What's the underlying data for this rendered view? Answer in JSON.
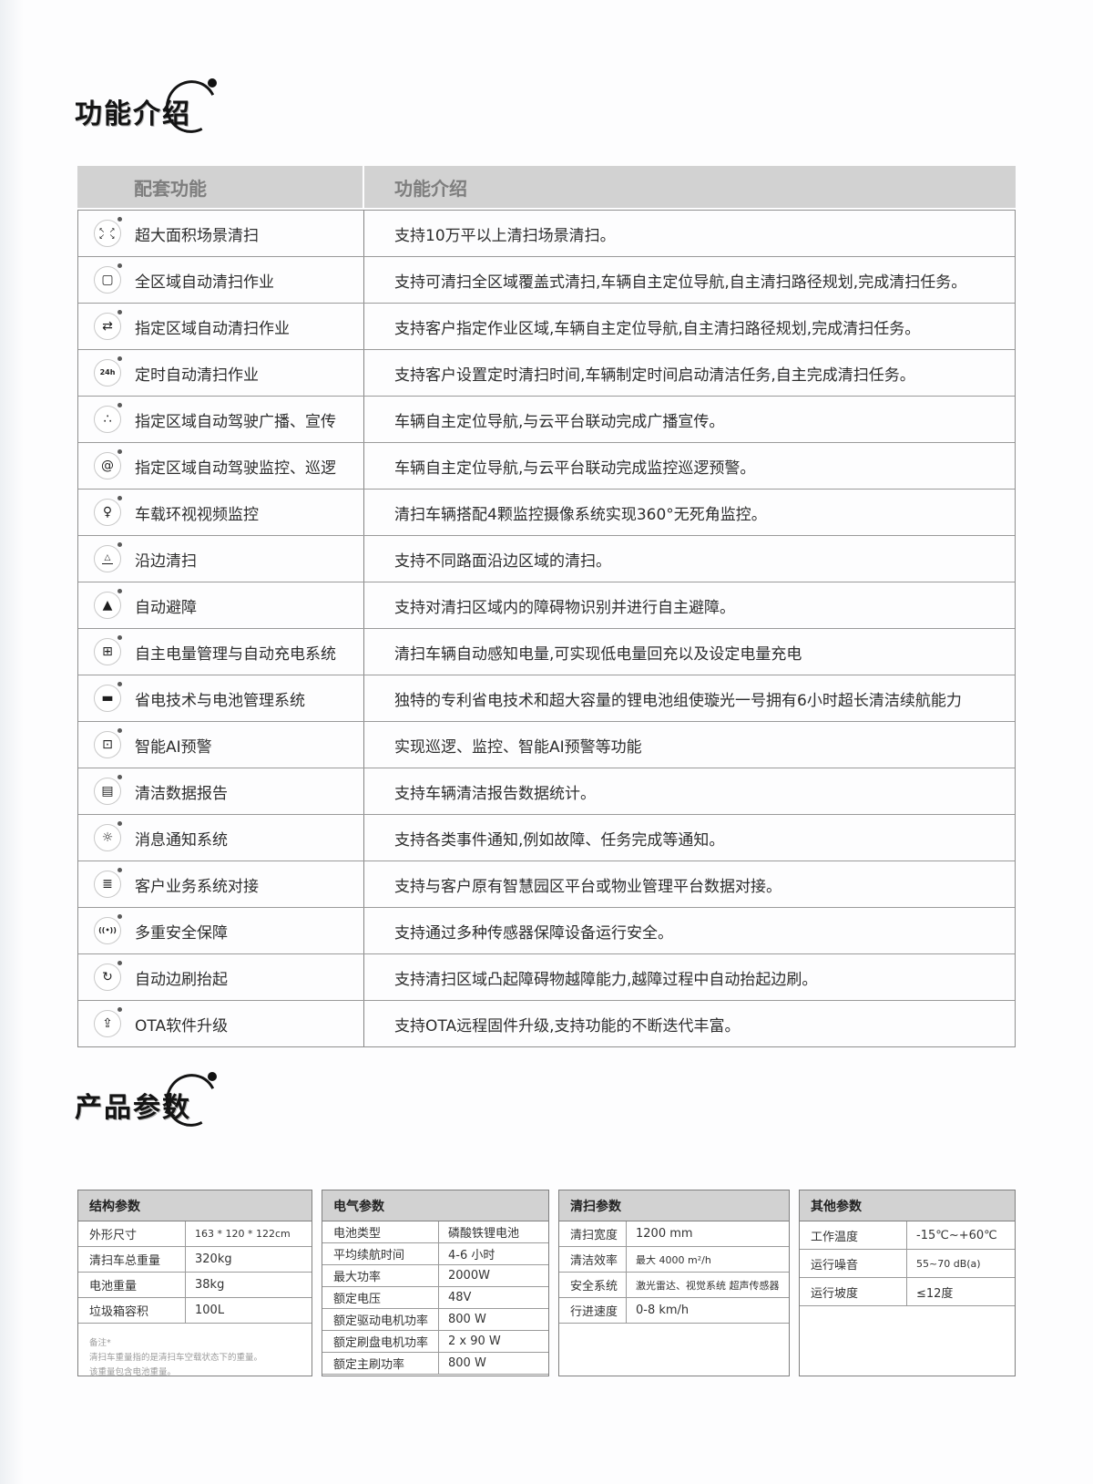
{
  "sections": {
    "features_title": "功能介绍",
    "params_title": "产品参数"
  },
  "colors": {
    "header_bg": "#d2d2d2",
    "header_text": "#7e7e7e",
    "table_border": "#8f8f8f",
    "body_text": "#2d2d2d",
    "note_text": "#9b9b9b"
  },
  "features_table": {
    "headers": [
      "配套功能",
      "功能介绍"
    ],
    "rows": [
      {
        "icon": "expand-area-icon",
        "glyph": "↖ ↗\n↙ ↘",
        "label": "超大面积场景清扫",
        "desc": "支持10万平以上清扫场景清扫。"
      },
      {
        "icon": "area-polygon-icon",
        "glyph": "▢",
        "label": "全区域自动清扫作业",
        "desc": "支持可清扫全区域覆盖式清扫,车辆自主定位导航,自主清扫路径规划,完成清扫任务。"
      },
      {
        "icon": "repeat-region-icon",
        "glyph": "⇄",
        "label": "指定区域自动清扫作业",
        "desc": "支持客户指定作业区域,车辆自主定位导航,自主清扫路径规划,完成清扫任务。"
      },
      {
        "icon": "24h-timer-icon",
        "glyph": "24h",
        "label": "定时自动清扫作业",
        "desc": "支持客户设置定时清扫时间,车辆制定时间启动清洁任务,自主完成清扫任务。"
      },
      {
        "icon": "broadcast-network-icon",
        "glyph": "∴",
        "label": "指定区域自动驾驶广播、宣传",
        "desc": "车辆自主定位导航,与云平台联动完成广播宣传。"
      },
      {
        "icon": "patrol-spiral-icon",
        "glyph": "@",
        "label": "指定区域自动驾驶监控、巡逻",
        "desc": "车辆自主定位导航,与云平台联动完成监控巡逻预警。"
      },
      {
        "icon": "camera-monitor-icon",
        "glyph": "♀",
        "label": "车载环视视频监控",
        "desc": "清扫车辆搭配4颗监控摄像系统实现360°无死角监控。"
      },
      {
        "icon": "edge-sweep-icon",
        "glyph": "△",
        "label": "沿边清扫",
        "desc": "支持不同路面沿边区域的清扫。"
      },
      {
        "icon": "obstacle-avoid-icon",
        "glyph": "▲",
        "label": "自动避障",
        "desc": "支持对清扫区域内的障碍物识别并进行自主避障。"
      },
      {
        "icon": "battery-charge-icon",
        "glyph": "⊞",
        "label": "自主电量管理与自动充电系统",
        "desc": "清扫车辆自动感知电量,可实现低电量回充以及设定电量充电"
      },
      {
        "icon": "battery-save-icon",
        "glyph": "▬",
        "label": "省电技术与电池管理系统",
        "desc": "独特的专利省电技术和超大容量的锂电池组使璇光一号拥有6小时超长清洁续航能力"
      },
      {
        "icon": "ai-robot-icon",
        "glyph": "⊡",
        "label": "智能AI预警",
        "desc": "实现巡逻、监控、智能AI预警等功能"
      },
      {
        "icon": "report-chart-icon",
        "glyph": "▤",
        "label": "清洁数据报告",
        "desc": "支持车辆清洁报告数据统计。"
      },
      {
        "icon": "notification-alarm-icon",
        "glyph": "☼",
        "label": "消息通知系统",
        "desc": "支持各类事件通知,例如故障、任务完成等通知。"
      },
      {
        "icon": "system-connect-icon",
        "glyph": "≣",
        "label": "客户业务系统对接",
        "desc": "支持与客户原有智慧园区平台或物业管理平台数据对接。"
      },
      {
        "icon": "safety-signal-icon",
        "glyph": "((•))",
        "label": "多重安全保障",
        "desc": "支持通过多种传感器保障设备运行安全。"
      },
      {
        "icon": "side-brush-lift-icon",
        "glyph": "↻",
        "label": "自动边刷抬起",
        "desc": "支持清扫区域凸起障碍物越障能力,越障过程中自动抬起边刷。"
      },
      {
        "icon": "ota-upgrade-icon",
        "glyph": "⇪",
        "label": "OTA软件升级",
        "desc": "支持OTA远程固件升级,支持功能的不断迭代丰富。"
      }
    ]
  },
  "spec_tables": [
    {
      "title": "结构参数",
      "rows": [
        [
          "外形尺寸",
          "163 * 120 * 122cm"
        ],
        [
          "清扫车总重量",
          "320kg"
        ],
        [
          "电池重量",
          "38kg"
        ],
        [
          "垃圾箱容积",
          "100L"
        ]
      ],
      "note": "备注*\n清扫车重量指的是清扫车空载状态下的重量。\n该重量包含电池重量。"
    },
    {
      "title": "电气参数",
      "rows": [
        [
          "电池类型",
          "磷酸铁锂电池"
        ],
        [
          "平均续航时间",
          "4-6 小时"
        ],
        [
          "最大功率",
          "2000W"
        ],
        [
          "额定电压",
          "48V"
        ],
        [
          "额定驱动电机功率",
          "800 W"
        ],
        [
          "额定刷盘电机功率",
          "2 x 90 W"
        ],
        [
          "额定主刷功率",
          "800 W"
        ]
      ]
    },
    {
      "title": "清扫参数",
      "rows": [
        [
          "清扫宽度",
          "1200 mm"
        ],
        [
          "清洁效率",
          "最大 4000 m²/h"
        ],
        [
          "安全系统",
          "激光雷达、视觉系统 超声传感器"
        ],
        [
          "行进速度",
          "0-8 km/h"
        ]
      ]
    },
    {
      "title": "其他参数",
      "rows": [
        [
          "工作温度",
          "-15℃~+60℃"
        ],
        [
          "运行噪音",
          "55~70 dB(a)"
        ],
        [
          "运行坡度",
          "≤12度"
        ]
      ]
    }
  ]
}
